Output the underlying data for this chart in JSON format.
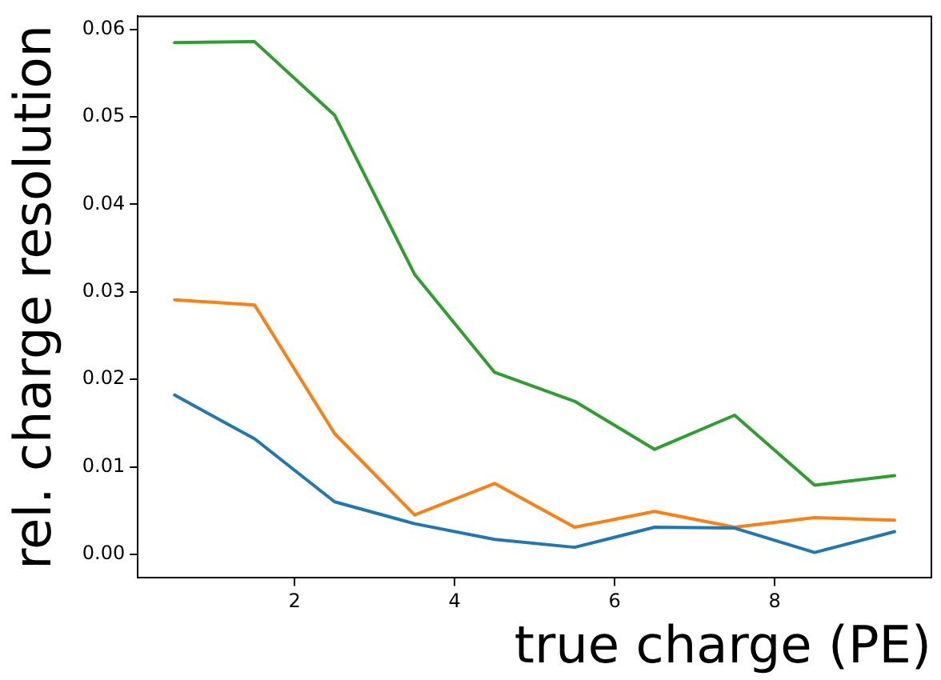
{
  "chart_data": {
    "type": "line",
    "xlabel": "true charge (PE)",
    "ylabel": "rel. charge resolution",
    "x": [
      0.5,
      1.5,
      2.5,
      3.5,
      4.5,
      5.5,
      6.5,
      7.5,
      8.5,
      9.5
    ],
    "series": [
      {
        "color": "#1f77b4",
        "values": [
          0.0182,
          0.0132,
          0.006,
          0.0035,
          0.0017,
          0.0008,
          0.0031,
          0.003,
          0.0002,
          0.0026
        ]
      },
      {
        "color": "#ff7f0e",
        "values": [
          0.0291,
          0.0285,
          0.0138,
          0.0045,
          0.0081,
          0.0031,
          0.0049,
          0.0031,
          0.0042,
          0.0039
        ]
      },
      {
        "color": "#2ca02c",
        "values": [
          0.0585,
          0.0586,
          0.0502,
          0.032,
          0.0208,
          0.0175,
          0.012,
          0.0159,
          0.0079,
          0.009
        ]
      }
    ],
    "xlim": [
      0.04,
      9.96
    ],
    "xticks": [
      2,
      4,
      6,
      8
    ],
    "ylim": [
      -0.0027,
      0.0615
    ],
    "yticks": [
      {
        "value": 0,
        "label": "0.00"
      },
      {
        "value": 0.01,
        "label": "0.01"
      },
      {
        "value": 0.02,
        "label": "0.02"
      },
      {
        "value": 0.03,
        "label": "0.03"
      },
      {
        "value": 0.04,
        "label": "0.04"
      },
      {
        "value": 0.05,
        "label": "0.05"
      },
      {
        "value": 0.06,
        "label": "0.06"
      }
    ],
    "grid": false,
    "legend": false,
    "marker": "none",
    "line_style": "solid"
  }
}
